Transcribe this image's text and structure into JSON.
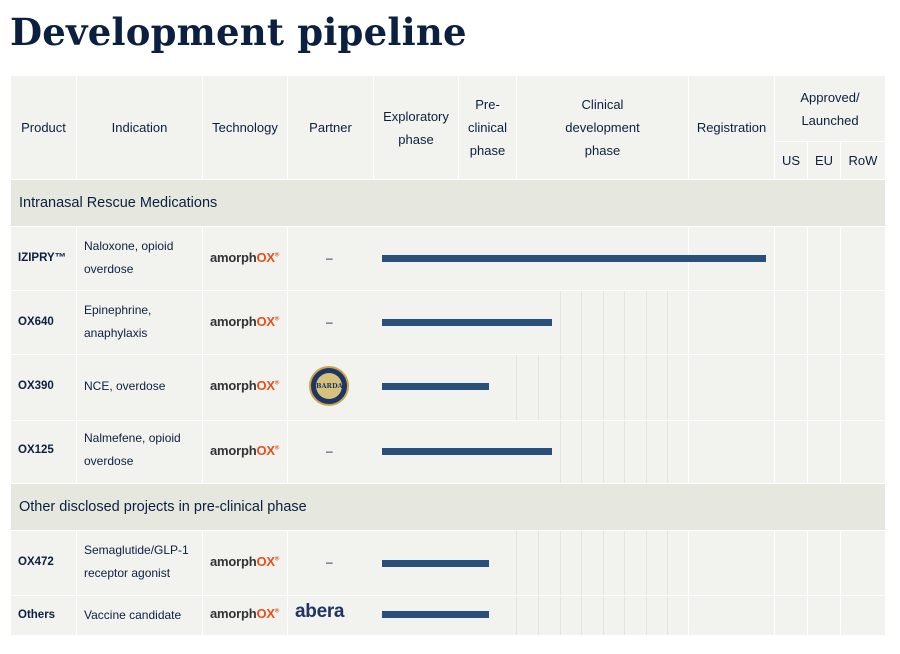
{
  "title": "Development pipeline",
  "header": {
    "product": "Product",
    "indication": "Indication",
    "technology": "Technology",
    "partner": "Partner",
    "exploratory": [
      "Exploratory",
      "phase"
    ],
    "preclinical": [
      "Pre-",
      "clinical",
      "phase"
    ],
    "clinical": [
      "Clinical",
      "development",
      "phase"
    ],
    "registration": "Registration",
    "approved": [
      "Approved/",
      "Launched"
    ],
    "us": "US",
    "eu": "EU",
    "row": "RoW"
  },
  "sections": {
    "intranasal": "Intranasal Rescue Medications",
    "other": "Other disclosed projects in pre-clinical phase"
  },
  "brand": {
    "name_dark": "amorph",
    "name_accent": "OX",
    "mark": "®"
  },
  "rows": [
    {
      "product": "IZIPRY™",
      "indication": [
        "Naloxone, opioid",
        "overdose"
      ],
      "partner": "–",
      "progress": 1.0
    },
    {
      "product": "OX640",
      "indication": [
        "Epinephrine,",
        "anaphylaxis"
      ],
      "partner": "–",
      "progress": 0.443
    },
    {
      "product": "OX390",
      "indication": [
        "NCE, overdose"
      ],
      "partner_logo": "BARDA",
      "progress": 0.279
    },
    {
      "product": "OX125",
      "indication": [
        "Nalmefene, opioid",
        "overdose"
      ],
      "partner": "–",
      "progress": 0.443
    },
    {
      "product": "OX472",
      "indication": [
        "Semaglutide/GLP-1",
        "receptor agonist"
      ],
      "partner": "–",
      "progress": 0.279
    },
    {
      "product": "Others",
      "indication": [
        "Vaccine candidate"
      ],
      "partner_logo": "abera",
      "progress": 0.279
    }
  ],
  "colors": {
    "bar": "#2a4f7a",
    "accent": "#e94e1b",
    "text": "#0b2040"
  }
}
